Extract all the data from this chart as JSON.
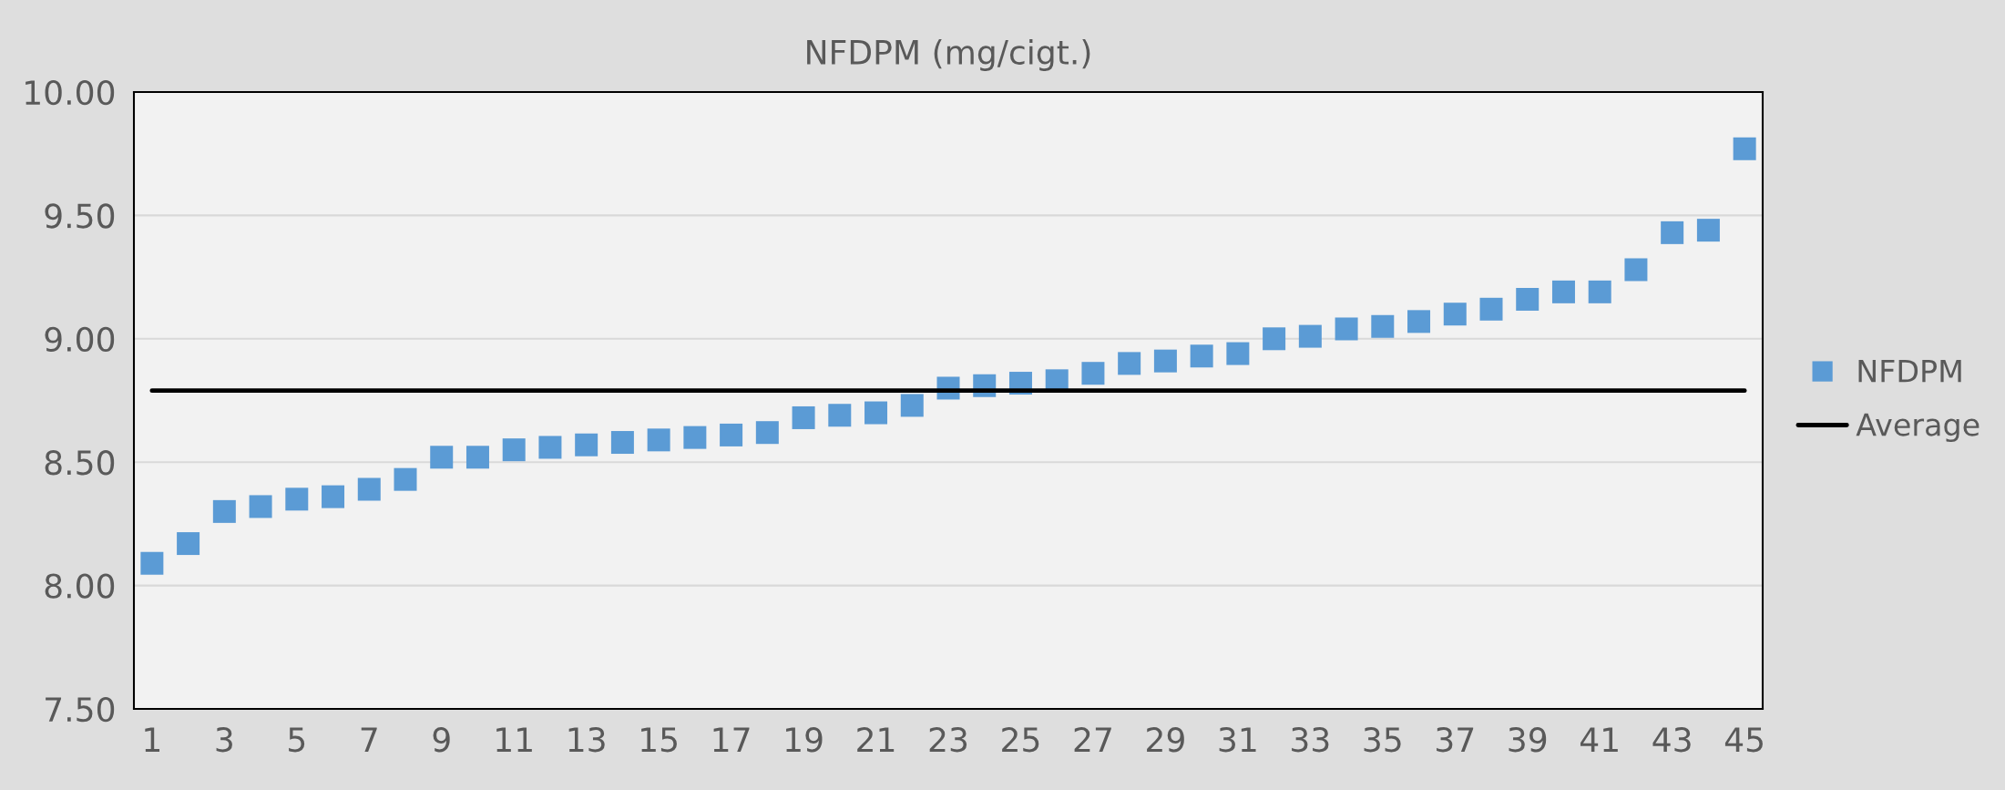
{
  "chart_data": {
    "type": "scatter",
    "title": "NFDPM (mg/cigt.)",
    "categories": [
      "1",
      null,
      "3",
      null,
      "5",
      null,
      "7",
      null,
      "9",
      null,
      "11",
      null,
      "13",
      null,
      "15",
      null,
      "17",
      null,
      "19",
      null,
      "21",
      null,
      "23",
      null,
      "25",
      null,
      "27",
      null,
      "29",
      null,
      "31",
      null,
      "33",
      null,
      "35",
      null,
      "37",
      null,
      "39",
      null,
      "41",
      null,
      "43",
      null,
      "45"
    ],
    "series": [
      {
        "name": "NFDPM",
        "color": "#5b9bd5",
        "marker": "square",
        "values": [
          8.09,
          8.17,
          8.3,
          8.32,
          8.35,
          8.36,
          8.39,
          8.43,
          8.52,
          8.52,
          8.55,
          8.56,
          8.57,
          8.58,
          8.59,
          8.6,
          8.61,
          8.62,
          8.68,
          8.69,
          8.7,
          8.73,
          8.8,
          8.81,
          8.82,
          8.83,
          8.86,
          8.9,
          8.91,
          8.93,
          8.94,
          9.0,
          9.01,
          9.04,
          9.05,
          9.07,
          9.1,
          9.12,
          9.16,
          9.19,
          9.19,
          9.28,
          9.43,
          9.44,
          9.77
        ]
      },
      {
        "name": "Average",
        "type": "line",
        "color": "#000000",
        "marker": "none",
        "line_style": "solid",
        "values": [
          8.79,
          8.79,
          8.79,
          8.79,
          8.79,
          8.79,
          8.79,
          8.79,
          8.79,
          8.79,
          8.79,
          8.79,
          8.79,
          8.79,
          8.79,
          8.79,
          8.79,
          8.79,
          8.79,
          8.79,
          8.79,
          8.79,
          8.79,
          8.79,
          8.79,
          8.79,
          8.79,
          8.79,
          8.79,
          8.79,
          8.79,
          8.79,
          8.79,
          8.79,
          8.79,
          8.79,
          8.79,
          8.79,
          8.79,
          8.79,
          8.79,
          8.79,
          8.79,
          8.79,
          8.79
        ]
      }
    ],
    "ylim": [
      7.5,
      10.0
    ],
    "yticks": [
      {
        "value": 7.5,
        "label": "7.50"
      },
      {
        "value": 8.0,
        "label": "8.00"
      },
      {
        "value": 8.5,
        "label": "8.50"
      },
      {
        "value": 9.0,
        "label": "9.00"
      },
      {
        "value": 9.5,
        "label": "9.50"
      },
      {
        "value": 10.0,
        "label": "10.00"
      }
    ],
    "grid": "y",
    "legend": "right"
  }
}
